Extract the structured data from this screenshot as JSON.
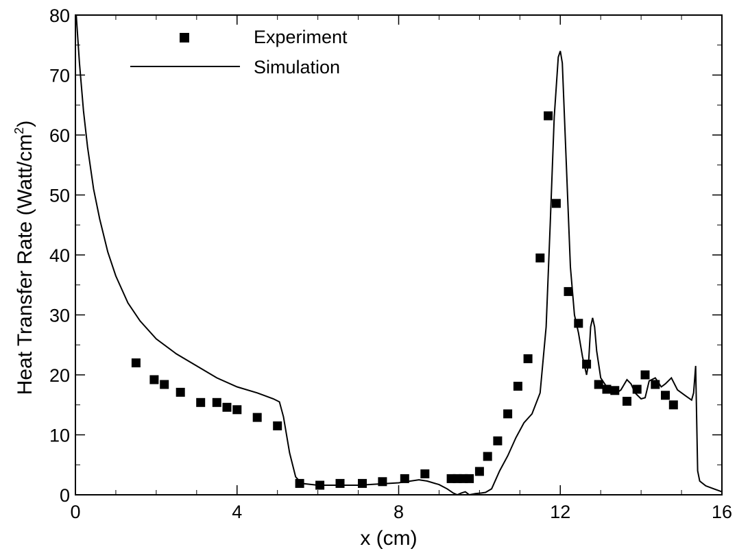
{
  "chart_data": {
    "type": "scatter",
    "xlabel": "x (cm)",
    "ylabel": "Heat Transfer Rate (Watt/cm",
    "ylabel_sup": "2",
    "ylabel_end": ")",
    "xlim": [
      0,
      16
    ],
    "ylim": [
      0,
      80
    ],
    "x_ticks": [
      0,
      4,
      8,
      12,
      16
    ],
    "y_ticks": [
      0,
      10,
      20,
      30,
      40,
      50,
      60,
      70,
      80
    ],
    "x_tick_labels": [
      "0",
      "4",
      "8",
      "12",
      "16"
    ],
    "y_tick_labels": [
      "0",
      "10",
      "20",
      "30",
      "40",
      "50",
      "60",
      "70",
      "80"
    ],
    "grid": false,
    "legend_position": "top-left",
    "series": [
      {
        "name": "Experiment",
        "kind": "markers",
        "marker": "filled-square",
        "color": "#000000",
        "x": [
          1.5,
          1.95,
          2.2,
          2.6,
          3.1,
          3.5,
          3.75,
          4.0,
          4.5,
          5.0,
          5.55,
          6.05,
          6.55,
          7.1,
          7.6,
          8.15,
          8.65,
          9.3,
          9.45,
          9.6,
          9.75,
          10.0,
          10.2,
          10.45,
          10.7,
          10.95,
          11.2,
          11.5,
          11.7,
          11.9,
          12.2,
          12.45,
          12.65,
          12.95,
          13.15,
          13.35,
          13.65,
          13.9,
          14.1,
          14.35,
          14.6,
          14.8
        ],
        "y": [
          22.0,
          19.2,
          18.4,
          17.1,
          15.4,
          15.4,
          14.6,
          14.2,
          12.9,
          11.5,
          1.9,
          1.6,
          1.9,
          1.9,
          2.2,
          2.7,
          3.5,
          2.7,
          2.7,
          2.7,
          2.7,
          3.9,
          6.4,
          9.0,
          13.5,
          18.1,
          22.7,
          39.5,
          63.2,
          48.6,
          33.9,
          28.6,
          21.8,
          18.4,
          17.6,
          17.4,
          15.6,
          17.6,
          20.0,
          18.4,
          16.6,
          15.0
        ]
      },
      {
        "name": "Simulation",
        "kind": "line",
        "color": "#000000",
        "x": [
          0.02,
          0.1,
          0.2,
          0.3,
          0.45,
          0.6,
          0.8,
          1.0,
          1.3,
          1.6,
          2.0,
          2.5,
          3.0,
          3.5,
          4.0,
          4.5,
          4.9,
          5.05,
          5.15,
          5.3,
          5.45,
          5.6,
          6.0,
          6.5,
          7.0,
          7.5,
          8.0,
          8.3,
          8.5,
          8.7,
          9.0,
          9.2,
          9.35,
          9.45,
          9.55,
          9.65,
          9.75,
          9.9,
          10.05,
          10.15,
          10.3,
          10.5,
          10.7,
          10.9,
          11.1,
          11.3,
          11.5,
          11.65,
          11.75,
          11.85,
          11.95,
          12.0,
          12.05,
          12.15,
          12.25,
          12.35,
          12.45,
          12.55,
          12.65,
          12.7,
          12.75,
          12.8,
          12.85,
          12.9,
          13.0,
          13.2,
          13.4,
          13.5,
          13.65,
          13.75,
          13.85,
          14.0,
          14.1,
          14.2,
          14.35,
          14.5,
          14.6,
          14.75,
          14.9,
          15.1,
          15.25,
          15.3,
          15.35,
          15.4,
          15.45,
          15.6,
          15.8,
          16.0
        ],
        "y": [
          80,
          72,
          64,
          58,
          51,
          46,
          40.5,
          36.5,
          32,
          29,
          26,
          23.5,
          21.5,
          19.5,
          18.0,
          17,
          16,
          15.5,
          13,
          7,
          3,
          1.9,
          1.6,
          1.6,
          1.6,
          1.8,
          2.0,
          2.3,
          2.5,
          2.3,
          1.7,
          1.0,
          0.3,
          0.0,
          0.3,
          0.5,
          0.0,
          0.2,
          0.3,
          0.4,
          1.0,
          4.0,
          6.5,
          9.5,
          12.0,
          13.5,
          17,
          28,
          45,
          63,
          73,
          74,
          72,
          55,
          38,
          30,
          27,
          23,
          20,
          22,
          28,
          29.5,
          28,
          24,
          19.5,
          17.5,
          17.0,
          17.5,
          19.2,
          18.5,
          17.0,
          16.0,
          16.2,
          19.0,
          19.5,
          18.0,
          18.5,
          19.5,
          17.5,
          16.5,
          15.8,
          17.0,
          21.5,
          4.0,
          2.3,
          1.5,
          1.0,
          0.5
        ]
      }
    ]
  }
}
